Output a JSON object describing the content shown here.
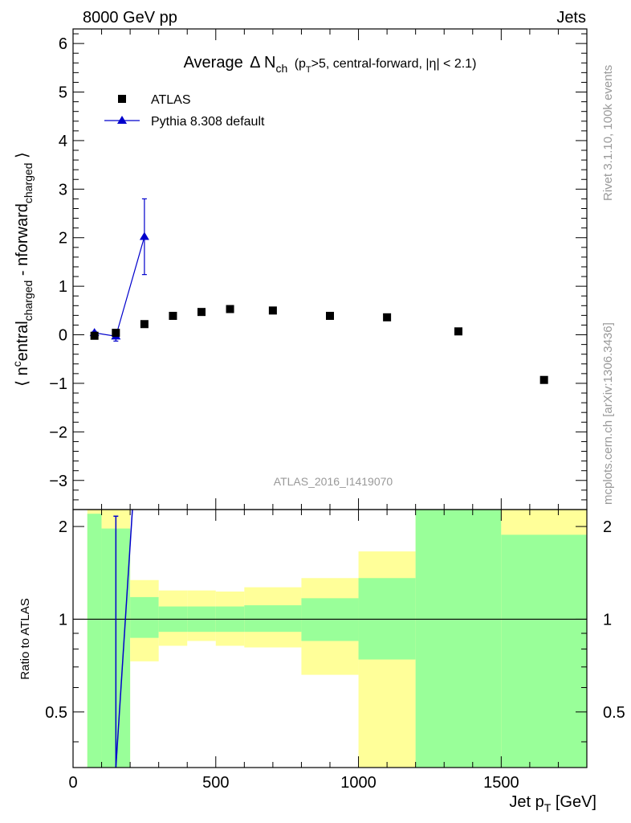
{
  "header": {
    "left": "8000 GeV pp",
    "right": "Jets"
  },
  "side_labels": {
    "rivet": "Rivet 3.1.10,  100k events",
    "mcplots": "mcplots.cern.ch [arXiv:1306.3436]"
  },
  "watermark": "ATLAS_2016_I1419070",
  "colors": {
    "data": "#000000",
    "mc": "#0000cc",
    "band_inner": "#99ff99",
    "band_outer": "#ffff99"
  },
  "chart_data": [
    {
      "type": "scatter",
      "title_parts": {
        "t1": "Average",
        "t2": "Δ N",
        "t3": "ch",
        "t4": "(p",
        "t5": "T",
        "t6": ">5, central-forward, |η| < 2.1)"
      },
      "ylabel_parts": {
        "a": "⟨ n",
        "b": "c",
        "c": "entral",
        "d": "charged",
        "e": " - n",
        "f": "forward",
        "g": "charged",
        "h": " ⟩"
      },
      "xlim": [
        0,
        1800
      ],
      "ylim": [
        -3.6,
        6.3
      ],
      "yticks": [
        -3,
        -2,
        -1,
        0,
        1,
        2,
        3,
        4,
        5,
        6
      ],
      "legend": {
        "position": "top-left"
      },
      "series": [
        {
          "name": "ATLAS",
          "marker": "square",
          "points": [
            {
              "x": 75,
              "y": -0.02
            },
            {
              "x": 150,
              "y": 0.04
            },
            {
              "x": 250,
              "y": 0.22
            },
            {
              "x": 350,
              "y": 0.39
            },
            {
              "x": 450,
              "y": 0.47
            },
            {
              "x": 550,
              "y": 0.53
            },
            {
              "x": 700,
              "y": 0.5
            },
            {
              "x": 900,
              "y": 0.39
            },
            {
              "x": 1100,
              "y": 0.36
            },
            {
              "x": 1350,
              "y": 0.07
            },
            {
              "x": 1650,
              "y": -0.93
            }
          ]
        },
        {
          "name": "Pythia 8.308 default",
          "marker": "triangle",
          "points": [
            {
              "x": 75,
              "y": 0.04,
              "err": 0.03
            },
            {
              "x": 150,
              "y": -0.03,
              "err": 0.1
            },
            {
              "x": 250,
              "y": 2.02,
              "err": 0.78
            }
          ]
        }
      ]
    },
    {
      "type": "line",
      "ylabel": "Ratio to ATLAS",
      "xlabel_parts": {
        "a": "Jet p",
        "b": "T",
        "c": " [GeV]"
      },
      "xlim": [
        0,
        1800
      ],
      "ylim": [
        0.33,
        2.27
      ],
      "xticks": [
        0,
        500,
        1000,
        1500
      ],
      "yticks_major": [
        0.5,
        1,
        2
      ],
      "reference": 1,
      "bands": [
        {
          "xlo": 50,
          "xhi": 100,
          "inner": [
            0.33,
            2.2
          ],
          "outer": [
            0.33,
            2.27
          ]
        },
        {
          "xlo": 100,
          "xhi": 200,
          "inner": [
            0.33,
            1.97
          ],
          "outer": [
            0.33,
            2.27
          ]
        },
        {
          "xlo": 200,
          "xhi": 300,
          "inner": [
            0.87,
            1.18
          ],
          "outer": [
            0.73,
            1.34
          ]
        },
        {
          "xlo": 300,
          "xhi": 400,
          "inner": [
            0.91,
            1.1
          ],
          "outer": [
            0.82,
            1.24
          ]
        },
        {
          "xlo": 400,
          "xhi": 500,
          "inner": [
            0.91,
            1.1
          ],
          "outer": [
            0.85,
            1.24
          ]
        },
        {
          "xlo": 500,
          "xhi": 600,
          "inner": [
            0.91,
            1.1
          ],
          "outer": [
            0.82,
            1.23
          ]
        },
        {
          "xlo": 600,
          "xhi": 800,
          "inner": [
            0.91,
            1.11
          ],
          "outer": [
            0.81,
            1.27
          ]
        },
        {
          "xlo": 800,
          "xhi": 1000,
          "inner": [
            0.85,
            1.17
          ],
          "outer": [
            0.66,
            1.36
          ]
        },
        {
          "xlo": 1000,
          "xhi": 1200,
          "inner": [
            0.74,
            1.36
          ],
          "outer": [
            0.33,
            1.66
          ]
        },
        {
          "xlo": 1200,
          "xhi": 1500,
          "inner": [
            0.33,
            2.27
          ],
          "outer": [
            0.33,
            2.27
          ]
        },
        {
          "xlo": 1500,
          "xhi": 1800,
          "inner": [
            0.33,
            1.88
          ],
          "outer": [
            0.33,
            2.27
          ]
        }
      ],
      "mc_ratio": {
        "points": [
          {
            "x": 150,
            "y": 0.33,
            "err_hi": 2.16
          },
          {
            "x": 250,
            "y": 9.2
          }
        ]
      }
    }
  ]
}
